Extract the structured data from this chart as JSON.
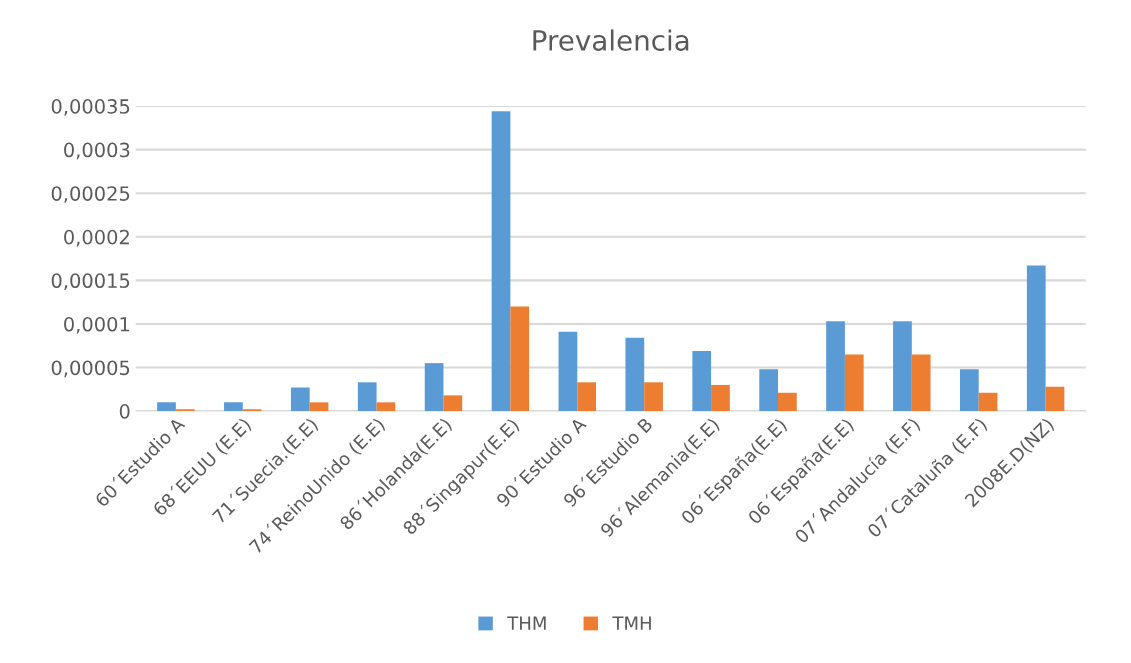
{
  "chart_data": {
    "type": "bar",
    "title": "Prevalencia",
    "categories": [
      "60´Estudio A",
      "68´EEUU (E.E)",
      "71´Suecia.(E.E)",
      "74´ReinoUnido (E.E)",
      "86´Holanda(E.E)",
      "88´Singapur(E.E)",
      "90´Estudio A",
      "96´Estudio B",
      "96´Alemania(E.E)",
      "06´España(E.E)",
      "06´España(E.E)",
      "07´Andalucía (E.F)",
      "07´Cataluña (E.F)",
      "2008E.D(NZ)"
    ],
    "series": [
      {
        "name": "THM",
        "color": "#5b9bd5",
        "values": [
          1e-05,
          1e-05,
          2.7e-05,
          3.3e-05,
          5.5e-05,
          0.000344,
          9.1e-05,
          8.4e-05,
          6.9e-05,
          4.8e-05,
          0.000103,
          0.000103,
          4.8e-05,
          0.000167
        ]
      },
      {
        "name": "TMH",
        "color": "#ed7d31",
        "values": [
          2e-06,
          2e-06,
          1e-05,
          1e-05,
          1.8e-05,
          0.00012,
          3.3e-05,
          3.3e-05,
          3e-05,
          2.1e-05,
          6.5e-05,
          6.5e-05,
          2.1e-05,
          2.8e-05
        ]
      }
    ],
    "ylim": [
      0,
      0.00035
    ],
    "yticks": [
      {
        "value": 0,
        "label": "0"
      },
      {
        "value": 5e-05,
        "label": "0,00005"
      },
      {
        "value": 0.0001,
        "label": "0,0001"
      },
      {
        "value": 0.00015,
        "label": "0,00015"
      },
      {
        "value": 0.0002,
        "label": "0,0002"
      },
      {
        "value": 0.00025,
        "label": "0,00025"
      },
      {
        "value": 0.0003,
        "label": "0,0003"
      },
      {
        "value": 0.00035,
        "label": "0,00035"
      }
    ],
    "grid": "y",
    "legend": "bottom"
  }
}
